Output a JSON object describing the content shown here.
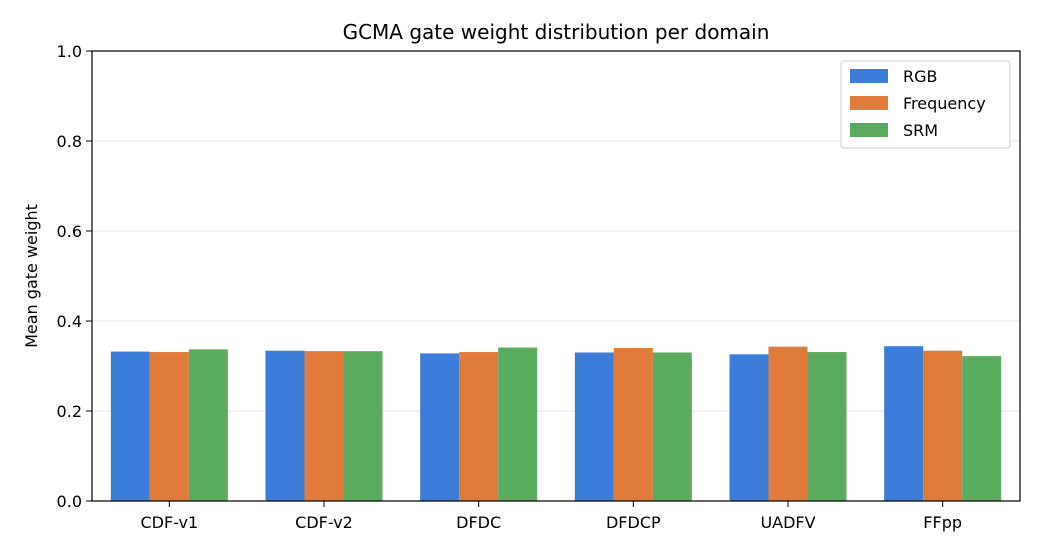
{
  "chart_data": {
    "type": "bar",
    "title": "GCMA gate weight distribution per domain",
    "xlabel": "",
    "ylabel": "Mean gate weight",
    "ylim": [
      0.0,
      1.0
    ],
    "yticks": [
      "0.0",
      "0.2",
      "0.4",
      "0.6",
      "0.8",
      "1.0"
    ],
    "grid": "horizontal",
    "legend_position": "top-right",
    "categories": [
      "CDF-v1",
      "CDF-v2",
      "DFDC",
      "DFDCP",
      "UADFV",
      "FFpp"
    ],
    "series": [
      {
        "name": "RGB",
        "color": "#3b7dd8",
        "values": [
          0.332,
          0.334,
          0.328,
          0.33,
          0.326,
          0.344
        ]
      },
      {
        "name": "Frequency",
        "color": "#e07b39",
        "values": [
          0.331,
          0.333,
          0.331,
          0.34,
          0.343,
          0.334
        ]
      },
      {
        "name": "SRM",
        "color": "#5aab5e",
        "values": [
          0.337,
          0.333,
          0.341,
          0.33,
          0.331,
          0.322
        ]
      }
    ]
  }
}
